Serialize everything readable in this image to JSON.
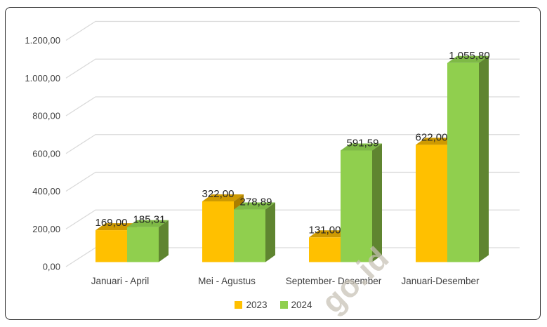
{
  "colors": {
    "background": "#ffffff",
    "border": "#2e2e2e",
    "gridline": "#d9d9d9",
    "axis_text": "#404040",
    "data_label_text": "#262626"
  },
  "watermark": {
    "text": "go.id"
  },
  "chart_data": {
    "type": "bar",
    "style": "3d-clustered-column",
    "title": "",
    "xlabel": "",
    "ylabel": "",
    "grid": true,
    "categories": [
      "Januari - April",
      "Mei - Agustus",
      "September- Desember",
      "Januari-Desember"
    ],
    "series": [
      {
        "name": "2023",
        "color": "#FFC000",
        "color_top": "#CE9A02",
        "color_side": "#AA7E00",
        "values": [
          169.0,
          322.0,
          131.0,
          622.0
        ],
        "labels": [
          "169,00",
          "322,00",
          "131,00",
          "622,00"
        ]
      },
      {
        "name": "2024",
        "color": "#90CF4E",
        "color_top": "#7EB946",
        "color_side": "#5F8530",
        "values": [
          185.31,
          278.89,
          591.59,
          1055.8
        ],
        "labels": [
          "185,31",
          "278,89",
          "591,59",
          "1.055,80"
        ]
      }
    ],
    "y_axis": {
      "min": 0,
      "max": 1200,
      "step": 200,
      "tick_labels": [
        "0,00",
        "200,00",
        "400,00",
        "600,00",
        "800,00",
        "1.000,00",
        "1.200,00"
      ]
    },
    "legend": {
      "position": "bottom",
      "items": [
        "2023",
        "2024"
      ]
    }
  }
}
